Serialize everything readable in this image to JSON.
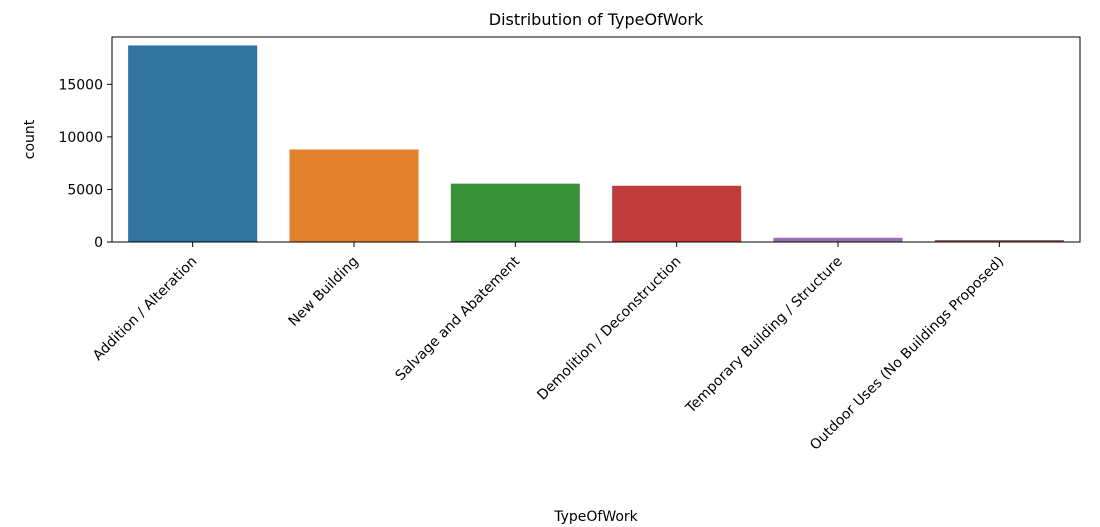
{
  "chart_data": {
    "type": "bar",
    "title": "Distribution of TypeOfWork",
    "xlabel": "TypeOfWork",
    "ylabel": "count",
    "categories": [
      "Addition / Alteration",
      "New Building",
      "Salvage and Abatement",
      "Demolition / Deconstruction",
      "Temporary Building / Structure",
      "Outdoor Uses (No Buildings Proposed)"
    ],
    "values": [
      18700,
      8800,
      5550,
      5350,
      400,
      180
    ],
    "colors": [
      "#3274a1",
      "#e1812c",
      "#3a923a",
      "#c03d3e",
      "#9372b2",
      "#845b53"
    ],
    "ylim": [
      0,
      19500
    ],
    "yticks": [
      0,
      5000,
      10000,
      15000
    ],
    "grid": false,
    "legend": "none"
  }
}
